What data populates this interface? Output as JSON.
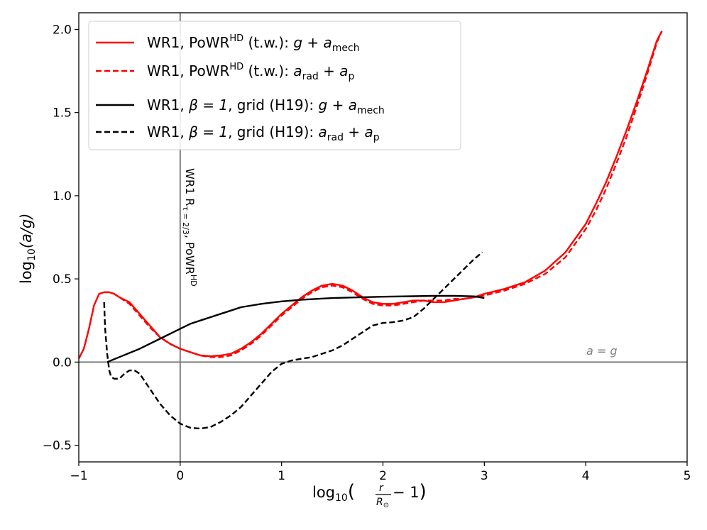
{
  "chart_data": {
    "type": "line",
    "xlim": [
      -1,
      5
    ],
    "ylim": [
      -0.6,
      2.1
    ],
    "xticks": [
      -1,
      0,
      1,
      2,
      3,
      4,
      5
    ],
    "yticks": [
      -0.5,
      0.0,
      0.5,
      1.0,
      1.5,
      2.0
    ],
    "xtick_labels": [
      "−1",
      "0",
      "1",
      "2",
      "3",
      "4",
      "5"
    ],
    "ytick_labels": [
      "−0.5",
      "0.0",
      "0.5",
      "1.0",
      "1.5",
      "2.0"
    ],
    "xlabel": {
      "prefix": "log",
      "sub": "10",
      "frac_num": "r",
      "frac_den": "R",
      "frac_den_sub": "⊙",
      "suffix": " − 1"
    },
    "ylabel": {
      "prefix": "log",
      "sub": "10",
      "expr": "(a/g)"
    },
    "hline": {
      "y": 0.0,
      "color": "#808080",
      "label": "a = g"
    },
    "vline": {
      "x": 0.0,
      "color": "#808080",
      "label_main": "WR1 R",
      "label_sub": "τ = 2/3",
      "label_after": ", PoWR",
      "label_sup": "HD"
    },
    "legend": {
      "placement": "top-left",
      "entries": [
        {
          "color": "#ff0000",
          "dash": "solid",
          "text": "WR1, PoWR",
          "sup": "HD",
          "mid": " (t.w.): ",
          "math": "g + a",
          "math_sub": "mech"
        },
        {
          "color": "#ff0000",
          "dash": "dashed",
          "text": "WR1, PoWR",
          "sup": "HD",
          "mid": " (t.w.): ",
          "math": "a",
          "math_sub": "rad",
          "math2": " + a",
          "math2_sub": "p"
        },
        {
          "color": "#000000",
          "dash": "solid",
          "text": "WR1, ",
          "greek": "β = 1",
          "mid": ", grid (H19): ",
          "math": "g + a",
          "math_sub": "mech"
        },
        {
          "color": "#000000",
          "dash": "dashed",
          "text": "WR1, ",
          "greek": "β = 1",
          "mid": ", grid (H19): ",
          "math": "a",
          "math_sub": "rad",
          "math2": " + a",
          "math2_sub": "p"
        }
      ]
    },
    "series": [
      {
        "name": "WR1, PoWR HD (t.w.): g + a_mech",
        "color": "#ff0000",
        "dash": "solid",
        "x": [
          -1.0,
          -0.95,
          -0.9,
          -0.85,
          -0.8,
          -0.75,
          -0.7,
          -0.65,
          -0.6,
          -0.5,
          -0.4,
          -0.3,
          -0.2,
          -0.1,
          0.0,
          0.1,
          0.2,
          0.3,
          0.4,
          0.5,
          0.6,
          0.7,
          0.8,
          0.9,
          1.0,
          1.1,
          1.2,
          1.3,
          1.4,
          1.5,
          1.6,
          1.7,
          1.8,
          1.9,
          2.0,
          2.1,
          2.2,
          2.3,
          2.4,
          2.5,
          2.6,
          2.7,
          2.8,
          2.9,
          3.0,
          3.2,
          3.4,
          3.6,
          3.8,
          4.0,
          4.1,
          4.2,
          4.3,
          4.4,
          4.5,
          4.6,
          4.7,
          4.75
        ],
        "y": [
          0.02,
          0.08,
          0.2,
          0.34,
          0.41,
          0.42,
          0.42,
          0.41,
          0.39,
          0.36,
          0.29,
          0.22,
          0.15,
          0.11,
          0.08,
          0.06,
          0.04,
          0.035,
          0.04,
          0.05,
          0.08,
          0.12,
          0.17,
          0.23,
          0.29,
          0.34,
          0.39,
          0.43,
          0.46,
          0.47,
          0.46,
          0.43,
          0.39,
          0.36,
          0.35,
          0.35,
          0.36,
          0.37,
          0.37,
          0.36,
          0.36,
          0.37,
          0.38,
          0.39,
          0.41,
          0.44,
          0.48,
          0.55,
          0.66,
          0.83,
          0.95,
          1.08,
          1.23,
          1.39,
          1.56,
          1.74,
          1.93,
          1.99
        ]
      },
      {
        "name": "WR1, PoWR HD (t.w.): a_rad + a_p",
        "color": "#ff0000",
        "dash": "dashed",
        "x": [
          -0.75,
          -0.7,
          -0.65,
          -0.6,
          -0.5,
          -0.4,
          -0.3,
          -0.2,
          -0.1,
          0.0,
          0.1,
          0.2,
          0.3,
          0.4,
          0.5,
          0.6,
          0.7,
          0.8,
          0.9,
          1.0,
          1.1,
          1.2,
          1.3,
          1.4,
          1.5,
          1.6,
          1.7,
          1.8,
          1.9,
          2.0,
          2.1,
          2.2,
          2.3,
          2.4,
          2.5,
          2.6,
          2.7,
          2.8,
          2.9,
          3.0,
          3.2,
          3.4,
          3.6,
          3.8,
          4.0,
          4.1,
          4.2,
          4.3,
          4.4,
          4.5,
          4.6,
          4.7,
          4.75
        ],
        "y": [
          0.42,
          0.42,
          0.41,
          0.39,
          0.35,
          0.28,
          0.21,
          0.15,
          0.11,
          0.08,
          0.06,
          0.04,
          0.03,
          0.03,
          0.04,
          0.07,
          0.11,
          0.16,
          0.22,
          0.28,
          0.33,
          0.38,
          0.42,
          0.45,
          0.46,
          0.45,
          0.42,
          0.38,
          0.35,
          0.34,
          0.34,
          0.35,
          0.36,
          0.37,
          0.37,
          0.37,
          0.38,
          0.38,
          0.39,
          0.4,
          0.43,
          0.47,
          0.53,
          0.63,
          0.8,
          0.91,
          1.04,
          1.19,
          1.35,
          1.53,
          1.72,
          1.92,
          1.99
        ]
      },
      {
        "name": "WR1, β = 1, grid (H19): g + a_mech",
        "color": "#000000",
        "dash": "solid",
        "x": [
          -0.72,
          -0.6,
          -0.4,
          -0.2,
          0.0,
          0.1,
          0.2,
          0.3,
          0.4,
          0.5,
          0.6,
          0.8,
          1.0,
          1.2,
          1.5,
          1.8,
          2.0,
          2.3,
          2.5,
          2.7,
          2.9,
          3.0
        ],
        "y": [
          0.0,
          0.03,
          0.08,
          0.14,
          0.2,
          0.23,
          0.25,
          0.27,
          0.29,
          0.31,
          0.33,
          0.35,
          0.365,
          0.375,
          0.385,
          0.39,
          0.393,
          0.396,
          0.398,
          0.398,
          0.395,
          0.385
        ]
      },
      {
        "name": "WR1, β = 1, grid (H19): a_rad + a_p",
        "color": "#000000",
        "dash": "dashed",
        "x": [
          -0.75,
          -0.74,
          -0.72,
          -0.7,
          -0.68,
          -0.65,
          -0.6,
          -0.55,
          -0.5,
          -0.45,
          -0.4,
          -0.3,
          -0.2,
          -0.1,
          0.0,
          0.1,
          0.2,
          0.3,
          0.4,
          0.5,
          0.6,
          0.7,
          0.8,
          0.9,
          1.0,
          1.1,
          1.2,
          1.3,
          1.4,
          1.5,
          1.6,
          1.7,
          1.8,
          1.9,
          2.0,
          2.1,
          2.2,
          2.3,
          2.4,
          2.5,
          2.6,
          2.7,
          2.8,
          2.9,
          2.98
        ],
        "y": [
          0.36,
          0.2,
          0.05,
          -0.05,
          -0.09,
          -0.1,
          -0.1,
          -0.07,
          -0.05,
          -0.05,
          -0.07,
          -0.16,
          -0.25,
          -0.32,
          -0.37,
          -0.395,
          -0.4,
          -0.39,
          -0.36,
          -0.32,
          -0.27,
          -0.2,
          -0.13,
          -0.06,
          -0.01,
          0.01,
          0.02,
          0.03,
          0.05,
          0.07,
          0.1,
          0.14,
          0.18,
          0.22,
          0.235,
          0.24,
          0.25,
          0.27,
          0.32,
          0.38,
          0.44,
          0.5,
          0.56,
          0.62,
          0.66
        ]
      }
    ]
  }
}
